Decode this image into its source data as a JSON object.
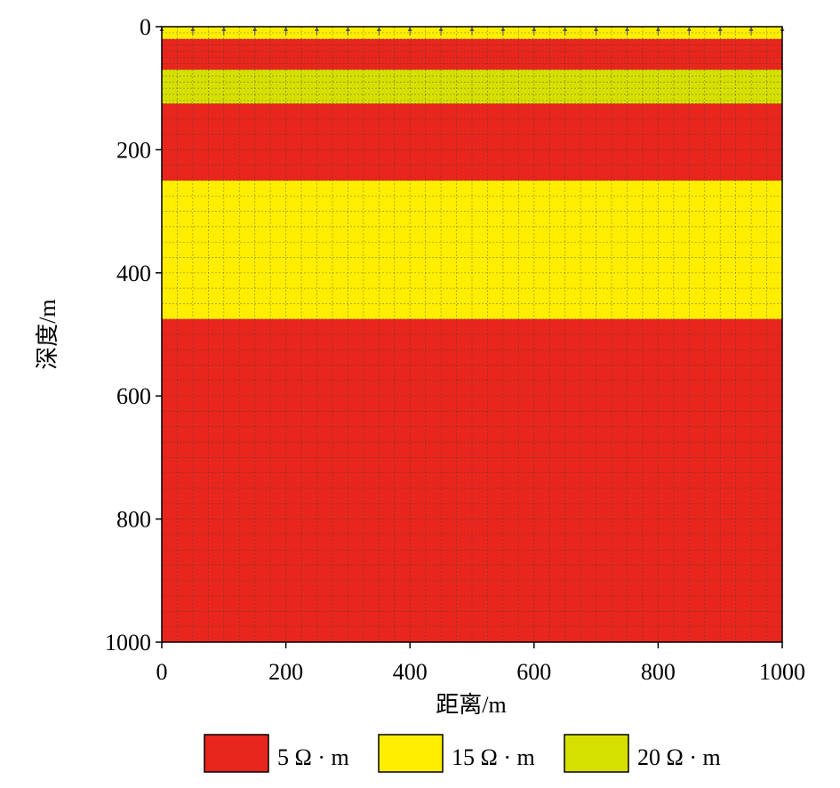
{
  "chart_data": {
    "type": "heatmap",
    "title": "",
    "xlabel": "距离/m",
    "ylabel": "深度/m",
    "xlim": [
      0,
      1000
    ],
    "ylim": [
      0,
      1000
    ],
    "y_inverted": true,
    "xticks": [
      "0",
      "200",
      "400",
      "600",
      "800",
      "1000"
    ],
    "yticks": [
      "0",
      "200",
      "400",
      "600",
      "800",
      "1000"
    ],
    "grid": true,
    "legend_placement": "bottom",
    "layers": [
      {
        "top": 0,
        "bottom": 20,
        "resistivity": 15
      },
      {
        "top": 20,
        "bottom": 70,
        "resistivity": 5
      },
      {
        "top": 70,
        "bottom": 125,
        "resistivity": 20
      },
      {
        "top": 125,
        "bottom": 250,
        "resistivity": 5
      },
      {
        "top": 250,
        "bottom": 475,
        "resistivity": 15
      },
      {
        "top": 475,
        "bottom": 1000,
        "resistivity": 5
      }
    ],
    "legend": [
      {
        "value": 5,
        "label": "5 Ω · m",
        "color": "#e8261e"
      },
      {
        "value": 15,
        "label": "15 Ω · m",
        "color": "#ffee00"
      },
      {
        "value": 20,
        "label": "20 Ω · m",
        "color": "#d6e000"
      }
    ]
  }
}
